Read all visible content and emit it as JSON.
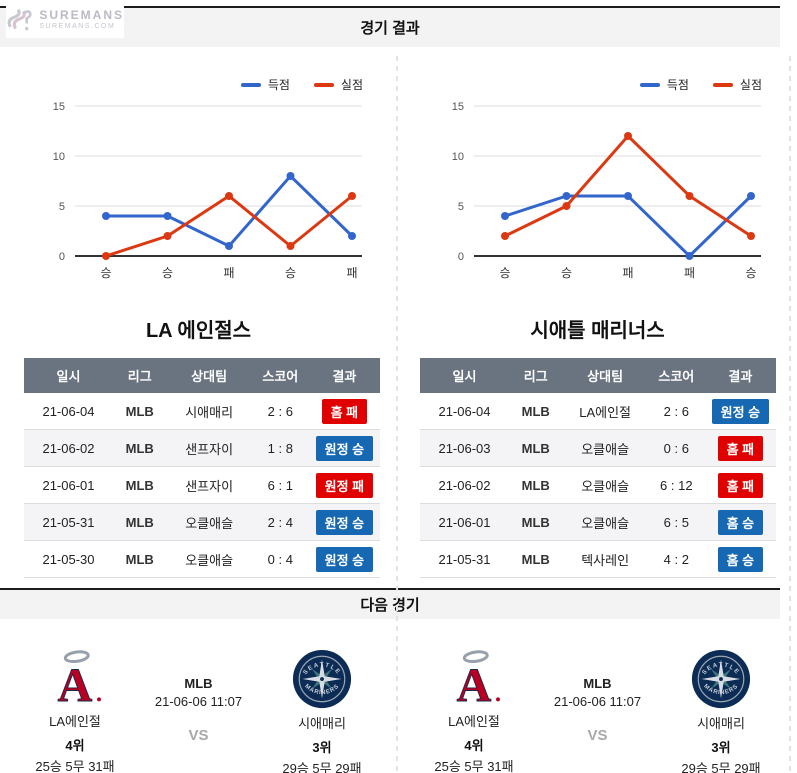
{
  "brand": {
    "name": "SUREMANS",
    "domain": "SUREMANS.COM"
  },
  "sections": {
    "results_title": "경기 결과",
    "next_title": "다음 경기"
  },
  "legend": {
    "scored": "득점",
    "conceded": "실점"
  },
  "colors": {
    "scored_line": "#3366cc",
    "conceded_line": "#dc3912",
    "win_badge": "#1668b3",
    "lose_badge": "#e00000",
    "table_header_bg": "#6a7380",
    "section_bar_bg": "#f3f3f4",
    "angels_red": "#ba0021",
    "mariners_navy": "#0c2c56",
    "mariners_teal": "#3c7a7a"
  },
  "chart_data": [
    {
      "type": "line",
      "team": "LA 에인절스",
      "categories": [
        "승",
        "승",
        "패",
        "승",
        "패"
      ],
      "series": [
        {
          "name": "득점",
          "values": [
            4,
            4,
            1,
            8,
            2
          ],
          "color": "#3366cc"
        },
        {
          "name": "실점",
          "values": [
            0,
            2,
            6,
            1,
            6
          ],
          "color": "#dc3912"
        }
      ],
      "ylim": [
        0,
        15
      ],
      "yticks": [
        0,
        5,
        10,
        15
      ],
      "grid": true,
      "legend_position": "top-right"
    },
    {
      "type": "line",
      "team": "시애틀 매리너스",
      "categories": [
        "승",
        "승",
        "패",
        "패",
        "승"
      ],
      "series": [
        {
          "name": "득점",
          "values": [
            4,
            6,
            6,
            0,
            6
          ],
          "color": "#3366cc"
        },
        {
          "name": "실점",
          "values": [
            2,
            5,
            12,
            6,
            2
          ],
          "color": "#dc3912"
        }
      ],
      "ylim": [
        0,
        15
      ],
      "yticks": [
        0,
        5,
        10,
        15
      ],
      "grid": true,
      "legend_position": "top-right"
    }
  ],
  "tables": [
    {
      "title": "LA 에인절스",
      "headers": [
        "일시",
        "리그",
        "상대팀",
        "스코어",
        "결과"
      ],
      "rows": [
        {
          "date": "21-06-04",
          "league": "MLB",
          "opponent": "시애매리",
          "score": "2 : 6",
          "result": "홈 패",
          "result_type": "lose"
        },
        {
          "date": "21-06-02",
          "league": "MLB",
          "opponent": "샌프자이",
          "score": "1 : 8",
          "result": "원정 승",
          "result_type": "win"
        },
        {
          "date": "21-06-01",
          "league": "MLB",
          "opponent": "샌프자이",
          "score": "6 : 1",
          "result": "원정 패",
          "result_type": "lose"
        },
        {
          "date": "21-05-31",
          "league": "MLB",
          "opponent": "오클애슬",
          "score": "2 : 4",
          "result": "원정 승",
          "result_type": "win"
        },
        {
          "date": "21-05-30",
          "league": "MLB",
          "opponent": "오클애슬",
          "score": "0 : 4",
          "result": "원정 승",
          "result_type": "win"
        }
      ]
    },
    {
      "title": "시애틀 매리너스",
      "headers": [
        "일시",
        "리그",
        "상대팀",
        "스코어",
        "결과"
      ],
      "rows": [
        {
          "date": "21-06-04",
          "league": "MLB",
          "opponent": "LA에인절",
          "score": "2 : 6",
          "result": "원정 승",
          "result_type": "win"
        },
        {
          "date": "21-06-03",
          "league": "MLB",
          "opponent": "오클애슬",
          "score": "0 : 6",
          "result": "홈 패",
          "result_type": "lose"
        },
        {
          "date": "21-06-02",
          "league": "MLB",
          "opponent": "오클애슬",
          "score": "6 : 12",
          "result": "홈 패",
          "result_type": "lose"
        },
        {
          "date": "21-06-01",
          "league": "MLB",
          "opponent": "오클애슬",
          "score": "6 : 5",
          "result": "홈 승",
          "result_type": "win"
        },
        {
          "date": "21-05-31",
          "league": "MLB",
          "opponent": "텍사레인",
          "score": "4 : 2",
          "result": "홈 승",
          "result_type": "win"
        }
      ]
    }
  ],
  "next_match": {
    "league": "MLB",
    "datetime": "21-06-06 11:07",
    "vs": "VS",
    "home": {
      "name": "LA에인절",
      "rank": "4위",
      "record": "25승 5무 31패"
    },
    "away": {
      "name": "시애매리",
      "rank": "3위",
      "record": "29승 5무 29패"
    }
  }
}
